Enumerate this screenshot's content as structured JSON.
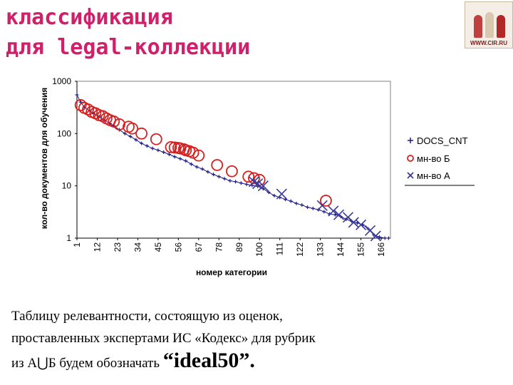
{
  "slide": {
    "title_line1": "классификация",
    "title_line2": "для legal-коллекции",
    "logo_text": "WWW.CIR.RU",
    "caption_line1": "Таблицу релевантности, состоящую из оценок,",
    "caption_line2": "проставленных экспертами ИС «Кодекс» для рубрик",
    "caption_line3_prefix": "из А",
    "caption_union": "⋃",
    "caption_line3_mid": "Б будем обозначать ",
    "caption_line3_big": "“ideal50”."
  },
  "colors": {
    "title": "#d0206a",
    "docs_cnt": "#1c1c80",
    "set_b": "#d62020",
    "set_a": "#3a3a9a",
    "plot_border": "#808080"
  },
  "chart_data": {
    "type": "scatter",
    "xlabel": "номер категории",
    "ylabel": "кол-во документов для обучения",
    "x_ticks": [
      "1",
      "12",
      "23",
      "34",
      "45",
      "56",
      "67",
      "78",
      "89",
      "100",
      "111",
      "122",
      "133",
      "144",
      "155",
      "166"
    ],
    "y_ticks": [
      "1",
      "10",
      "100",
      "1000"
    ],
    "xlim": [
      1,
      171
    ],
    "ylim": [
      1,
      1000
    ],
    "y_scale": "log",
    "grid": false,
    "legend_position": "right",
    "series": [
      {
        "name": "DOCS_CNT",
        "marker": "plus",
        "points": [
          [
            1,
            550
          ],
          [
            3,
            400
          ],
          [
            5,
            320
          ],
          [
            8,
            270
          ],
          [
            10,
            240
          ],
          [
            13,
            210
          ],
          [
            16,
            180
          ],
          [
            19,
            155
          ],
          [
            21,
            140
          ],
          [
            24,
            118
          ],
          [
            27,
            100
          ],
          [
            30,
            88
          ],
          [
            33,
            76
          ],
          [
            36,
            65
          ],
          [
            39,
            58
          ],
          [
            42,
            52
          ],
          [
            45,
            48
          ],
          [
            48,
            44
          ],
          [
            51,
            40
          ],
          [
            54,
            36
          ],
          [
            57,
            33
          ],
          [
            60,
            30
          ],
          [
            63,
            26
          ],
          [
            66,
            23
          ],
          [
            69,
            21
          ],
          [
            72,
            18.5
          ],
          [
            75,
            16.5
          ],
          [
            78,
            15
          ],
          [
            81,
            13.7
          ],
          [
            84,
            12.5
          ],
          [
            87,
            12
          ],
          [
            90,
            11.3
          ],
          [
            93,
            10.7
          ],
          [
            96,
            10.2
          ],
          [
            99,
            9.8
          ],
          [
            102,
            8.8
          ],
          [
            105,
            7.5
          ],
          [
            108,
            6.5
          ],
          [
            111,
            6.0
          ],
          [
            114,
            5.5
          ],
          [
            117,
            5.1
          ],
          [
            120,
            4.6
          ],
          [
            123,
            4.3
          ],
          [
            126,
            3.9
          ],
          [
            129,
            3.7
          ],
          [
            132,
            3.5
          ],
          [
            135,
            3.2
          ],
          [
            138,
            2.9
          ],
          [
            141,
            2.8
          ],
          [
            144,
            2.6
          ],
          [
            147,
            2.3
          ],
          [
            150,
            2.1
          ],
          [
            153,
            1.95
          ],
          [
            156,
            1.8
          ],
          [
            159,
            1.5
          ],
          [
            162,
            1.15
          ],
          [
            165,
            1.05
          ],
          [
            168,
            1.0
          ],
          [
            170,
            1.0
          ]
        ]
      },
      {
        "name": "мн-во Б",
        "marker": "circle",
        "points": [
          [
            3,
            350
          ],
          [
            5,
            310
          ],
          [
            7,
            290
          ],
          [
            9,
            260
          ],
          [
            11,
            245
          ],
          [
            13,
            225
          ],
          [
            15,
            215
          ],
          [
            17,
            195
          ],
          [
            19,
            180
          ],
          [
            21,
            170
          ],
          [
            24,
            150
          ],
          [
            29,
            135
          ],
          [
            31,
            125
          ],
          [
            36,
            100
          ],
          [
            44,
            78
          ],
          [
            52,
            55
          ],
          [
            54,
            54
          ],
          [
            56,
            53
          ],
          [
            57,
            52
          ],
          [
            59,
            50
          ],
          [
            60,
            48
          ],
          [
            62,
            46
          ],
          [
            64,
            43
          ],
          [
            67,
            38
          ],
          [
            77,
            25
          ],
          [
            85,
            19
          ],
          [
            94,
            15
          ],
          [
            97,
            14
          ],
          [
            100,
            13
          ],
          [
            136,
            5.2
          ]
        ]
      },
      {
        "name": "мн-во А",
        "marker": "x",
        "points": [
          [
            97,
            12
          ],
          [
            99,
            11
          ],
          [
            102,
            10
          ],
          [
            112,
            7
          ],
          [
            134,
            4.2
          ],
          [
            140,
            3.3
          ],
          [
            143,
            2.8
          ],
          [
            148,
            2.5
          ],
          [
            151,
            2.0
          ],
          [
            155,
            1.8
          ],
          [
            160,
            1.4
          ],
          [
            163,
            1.1
          ]
        ]
      }
    ]
  }
}
